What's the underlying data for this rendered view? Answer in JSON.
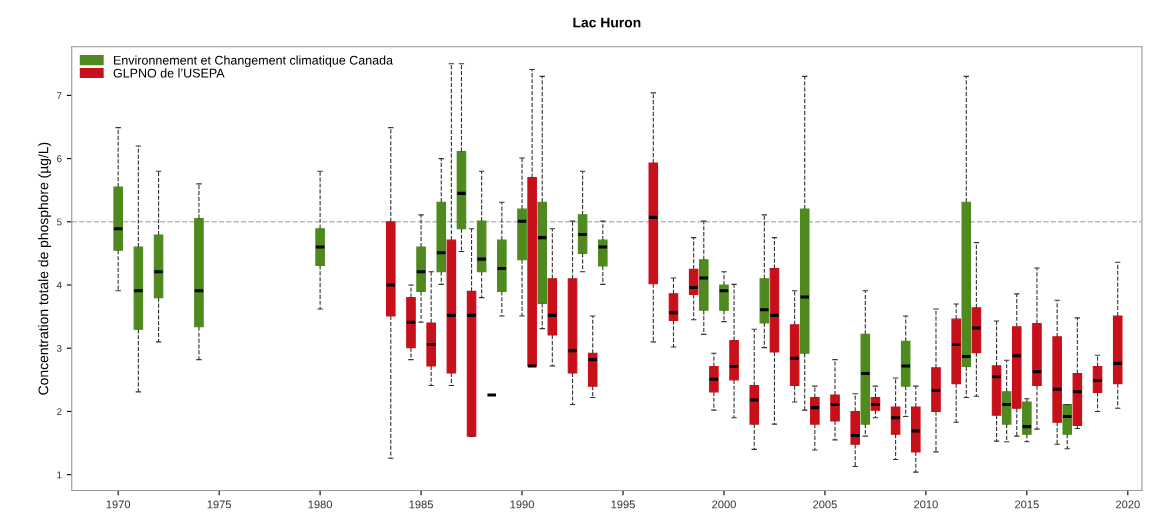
{
  "chart_data": {
    "type": "box",
    "title": "Lac Huron",
    "ylabel": "Concentration totale de phosphore (µg/L)",
    "xlim": [
      1967.7,
      2020.7
    ],
    "xticks": [
      1970,
      1975,
      1980,
      1985,
      1990,
      1995,
      2000,
      2005,
      2010,
      2015,
      2020
    ],
    "ylim": [
      0.75,
      7.77
    ],
    "yticks": [
      1,
      2,
      3,
      4,
      5,
      6,
      7
    ],
    "ref_lines": [
      {
        "axis": "y",
        "value": 5,
        "label": null,
        "color": "#bbbbbb",
        "line_style": "dashed"
      }
    ],
    "legend": "top left",
    "grid": false,
    "series": [
      {
        "name": "Environnement et Changement climatique Canada",
        "color": "#4e8a1e",
        "x": [
          1970,
          1971,
          1972,
          1974,
          1980,
          1985,
          1986,
          1987,
          1988,
          1989,
          1990,
          1991,
          1993,
          1994,
          1999,
          2000,
          2002,
          2004,
          2007,
          2009,
          2012,
          2014,
          2015,
          2017
        ],
        "boxes": [
          {
            "low": 3.91,
            "q1": 4.55,
            "median": 4.89,
            "q3": 5.55,
            "high": 6.49
          },
          {
            "low": 2.31,
            "q1": 3.3,
            "median": 3.91,
            "q3": 4.6,
            "high": 6.2
          },
          {
            "low": 3.1,
            "q1": 3.8,
            "median": 4.21,
            "q3": 4.79,
            "high": 5.8
          },
          {
            "low": 2.82,
            "q1": 3.34,
            "median": 3.91,
            "q3": 5.05,
            "high": 5.6
          },
          {
            "low": 3.62,
            "q1": 4.31,
            "median": 4.6,
            "q3": 4.89,
            "high": 5.8
          },
          {
            "low": 3.41,
            "q1": 3.9,
            "median": 4.21,
            "q3": 4.6,
            "high": 5.11
          },
          {
            "low": 4.01,
            "q1": 4.21,
            "median": 4.51,
            "q3": 5.31,
            "high": 6.0
          },
          {
            "low": 4.53,
            "q1": 4.89,
            "median": 5.45,
            "q3": 6.11,
            "high": 7.5
          },
          {
            "low": 3.8,
            "q1": 4.21,
            "median": 4.41,
            "q3": 5.01,
            "high": 5.8
          },
          {
            "low": 3.51,
            "q1": 3.9,
            "median": 4.26,
            "q3": 4.71,
            "high": 5.31
          },
          {
            "low": 3.51,
            "q1": 4.4,
            "median": 5.01,
            "q3": 5.2,
            "high": 6.01
          },
          {
            "low": 3.31,
            "q1": 3.71,
            "median": 4.75,
            "q3": 5.31,
            "high": 7.3
          },
          {
            "low": 4.21,
            "q1": 4.5,
            "median": 4.8,
            "q3": 5.11,
            "high": 5.8
          },
          {
            "low": 4.01,
            "q1": 4.3,
            "median": 4.6,
            "q3": 4.71,
            "high": 5.01
          },
          {
            "low": 3.22,
            "q1": 3.6,
            "median": 4.11,
            "q3": 4.4,
            "high": 5.01
          },
          {
            "low": 3.42,
            "q1": 3.6,
            "median": 3.91,
            "q3": 4.0,
            "high": 4.21
          },
          {
            "low": 3.01,
            "q1": 3.4,
            "median": 3.61,
            "q3": 4.1,
            "high": 5.11
          },
          {
            "low": 2.02,
            "q1": 2.92,
            "median": 3.81,
            "q3": 5.2,
            "high": 7.3
          },
          {
            "low": 1.61,
            "q1": 1.8,
            "median": 2.6,
            "q3": 3.22,
            "high": 3.91
          },
          {
            "low": 1.92,
            "q1": 2.4,
            "median": 2.72,
            "q3": 3.11,
            "high": 3.51
          },
          {
            "low": 2.22,
            "q1": 2.71,
            "median": 2.87,
            "q3": 5.31,
            "high": 7.3
          },
          {
            "low": 1.52,
            "q1": 1.8,
            "median": 2.11,
            "q3": 2.31,
            "high": 2.81
          },
          {
            "low": 1.52,
            "q1": 1.64,
            "median": 1.76,
            "q3": 2.15,
            "high": 2.2
          },
          {
            "low": 1.41,
            "q1": 1.64,
            "median": 1.92,
            "q3": 2.11,
            "high": 2.11
          }
        ]
      },
      {
        "name": "GLPNO de l’USEPA",
        "color": "#c8101a",
        "x": [
          1983.5,
          1984.5,
          1985.5,
          1986.5,
          1987.5,
          1988.5,
          1990.5,
          1991.5,
          1992.5,
          1993.5,
          1996.5,
          1997.5,
          1998.5,
          1999.5,
          2000.5,
          2001.5,
          2002.5,
          2003.5,
          2004.5,
          2005.5,
          2006.5,
          2007.5,
          2008.5,
          2009.5,
          2010.5,
          2011.5,
          2012.5,
          2013.5,
          2014.5,
          2015.5,
          2016.5,
          2017.5,
          2018.5,
          2019.5
        ],
        "boxes": [
          {
            "low": 1.26,
            "q1": 3.51,
            "median": 4.0,
            "q3": 5.0,
            "high": 6.49
          },
          {
            "low": 2.82,
            "q1": 3.01,
            "median": 3.41,
            "q3": 3.8,
            "high": 4.0
          },
          {
            "low": 2.41,
            "q1": 2.72,
            "median": 3.06,
            "q3": 3.4,
            "high": 4.21
          },
          {
            "low": 2.41,
            "q1": 2.61,
            "median": 3.52,
            "q3": 4.71,
            "high": 7.5
          },
          {
            "low": 1.61,
            "q1": 1.61,
            "median": 3.52,
            "q3": 3.9,
            "high": 4.89
          },
          {
            "low": 2.26,
            "q1": 2.26,
            "median": 2.26,
            "q3": 2.26,
            "high": 2.26
          },
          {
            "low": 2.72,
            "q1": 2.72,
            "median": 2.72,
            "q3": 5.7,
            "high": 7.41
          },
          {
            "low": 2.72,
            "q1": 3.21,
            "median": 3.52,
            "q3": 4.1,
            "high": 4.89
          },
          {
            "low": 2.11,
            "q1": 2.61,
            "median": 2.96,
            "q3": 4.1,
            "high": 5.01
          },
          {
            "low": 2.22,
            "q1": 2.4,
            "median": 2.82,
            "q3": 2.92,
            "high": 3.51
          },
          {
            "low": 3.1,
            "q1": 4.02,
            "median": 5.07,
            "q3": 5.93,
            "high": 7.04
          },
          {
            "low": 3.02,
            "q1": 3.44,
            "median": 3.56,
            "q3": 3.86,
            "high": 4.11
          },
          {
            "low": 3.45,
            "q1": 3.85,
            "median": 3.96,
            "q3": 4.25,
            "high": 4.75
          },
          {
            "low": 2.02,
            "q1": 2.31,
            "median": 2.51,
            "q3": 2.71,
            "high": 2.92
          },
          {
            "low": 1.9,
            "q1": 2.5,
            "median": 2.71,
            "q3": 3.12,
            "high": 4.01
          },
          {
            "low": 1.4,
            "q1": 1.8,
            "median": 2.18,
            "q3": 2.41,
            "high": 3.3
          },
          {
            "low": 1.8,
            "q1": 2.94,
            "median": 3.52,
            "q3": 4.26,
            "high": 4.75
          },
          {
            "low": 2.15,
            "q1": 2.41,
            "median": 2.84,
            "q3": 3.37,
            "high": 3.91
          },
          {
            "low": 1.39,
            "q1": 1.8,
            "median": 2.06,
            "q3": 2.22,
            "high": 2.4
          },
          {
            "low": 1.55,
            "q1": 1.85,
            "median": 2.11,
            "q3": 2.26,
            "high": 2.82
          },
          {
            "low": 1.13,
            "q1": 1.48,
            "median": 1.62,
            "q3": 2.0,
            "high": 2.28
          },
          {
            "low": 1.9,
            "q1": 2.02,
            "median": 2.11,
            "q3": 2.22,
            "high": 2.4
          },
          {
            "low": 1.24,
            "q1": 1.64,
            "median": 1.9,
            "q3": 2.07,
            "high": 2.53
          },
          {
            "low": 1.04,
            "q1": 1.36,
            "median": 1.69,
            "q3": 2.07,
            "high": 2.4
          },
          {
            "low": 1.36,
            "q1": 2.0,
            "median": 2.33,
            "q3": 2.69,
            "high": 3.62
          },
          {
            "low": 1.83,
            "q1": 2.44,
            "median": 3.06,
            "q3": 3.46,
            "high": 3.7
          },
          {
            "low": 2.24,
            "q1": 2.93,
            "median": 3.32,
            "q3": 3.64,
            "high": 4.67
          },
          {
            "low": 1.53,
            "q1": 1.94,
            "median": 2.55,
            "q3": 2.72,
            "high": 3.43
          },
          {
            "low": 1.61,
            "q1": 2.05,
            "median": 2.88,
            "q3": 3.34,
            "high": 3.86
          },
          {
            "low": 1.72,
            "q1": 2.41,
            "median": 2.63,
            "q3": 3.39,
            "high": 4.27
          },
          {
            "low": 1.48,
            "q1": 1.83,
            "median": 2.35,
            "q3": 3.18,
            "high": 3.76
          },
          {
            "low": 1.73,
            "q1": 1.78,
            "median": 2.31,
            "q3": 2.6,
            "high": 3.48
          },
          {
            "low": 2.0,
            "q1": 2.3,
            "median": 2.49,
            "q3": 2.71,
            "high": 2.89
          },
          {
            "low": 2.05,
            "q1": 2.44,
            "median": 2.76,
            "q3": 3.51,
            "high": 4.36
          }
        ]
      }
    ]
  }
}
